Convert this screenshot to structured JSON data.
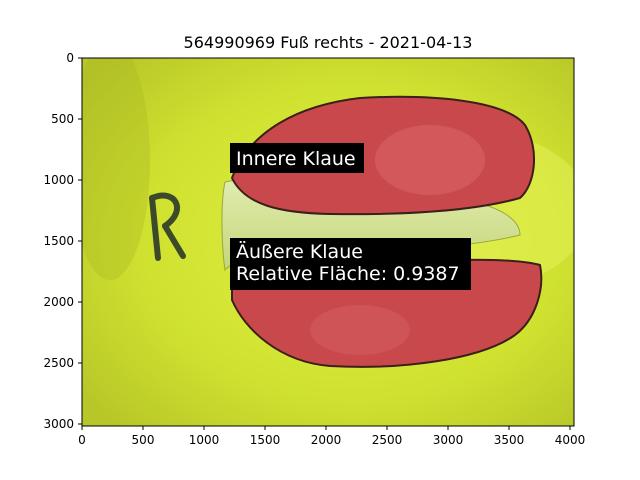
{
  "title": "564990969 Fuß rechts - 2021-04-13",
  "axes": {
    "x": {
      "range": [
        0,
        4032
      ],
      "ticks": [
        0,
        500,
        1000,
        1500,
        2000,
        2500,
        3000,
        3500,
        4000
      ]
    },
    "y": {
      "range": [
        3024,
        0
      ],
      "inverted": true,
      "ticks": [
        0,
        500,
        1000,
        1500,
        2000,
        2500,
        3000
      ]
    }
  },
  "annotations": {
    "inner": {
      "text": "Innere Klaue"
    },
    "outer": {
      "line1": "Äußere Klaue",
      "line2": "Relative Fläche: 0.9387"
    }
  },
  "image_content": {
    "marker_letter": "R",
    "overlay": "red-mask-on-hoof-claws",
    "background": "yellow-green-mat"
  },
  "colors": {
    "background_mat": "#d0e230",
    "mask_red": "#c8484c",
    "annotation_bg": "#000000",
    "annotation_text": "#ffffff"
  }
}
